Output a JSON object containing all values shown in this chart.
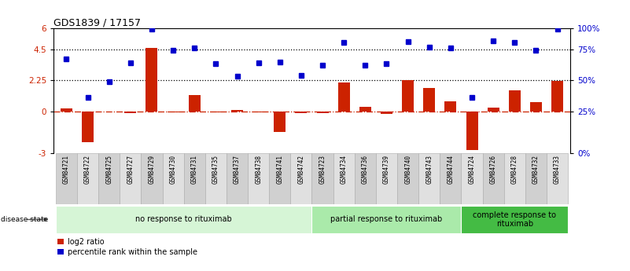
{
  "title": "GDS1839 / 17157",
  "samples": [
    "GSM84721",
    "GSM84722",
    "GSM84725",
    "GSM84727",
    "GSM84729",
    "GSM84730",
    "GSM84731",
    "GSM84735",
    "GSM84737",
    "GSM84738",
    "GSM84741",
    "GSM84742",
    "GSM84723",
    "GSM84734",
    "GSM84736",
    "GSM84739",
    "GSM84740",
    "GSM84743",
    "GSM84744",
    "GSM84724",
    "GSM84726",
    "GSM84728",
    "GSM84732",
    "GSM84733"
  ],
  "log2_ratio": [
    0.2,
    -2.2,
    0.0,
    -0.1,
    4.6,
    -0.08,
    1.2,
    -0.08,
    0.1,
    -0.08,
    -1.5,
    -0.1,
    -0.1,
    2.1,
    0.35,
    -0.18,
    2.25,
    1.7,
    0.75,
    -2.8,
    0.3,
    1.55,
    0.7,
    2.2
  ],
  "percentile": [
    3.82,
    1.0,
    2.15,
    3.5,
    5.97,
    4.42,
    4.57,
    3.47,
    2.57,
    3.5,
    3.57,
    2.62,
    3.37,
    5.02,
    3.37,
    3.47,
    5.07,
    4.67,
    4.57,
    1.0,
    5.12,
    5.02,
    4.42,
    5.97
  ],
  "groups": [
    {
      "label": "no response to rituximab",
      "start": 0,
      "end": 12,
      "color": "#d6f5d6"
    },
    {
      "label": "partial response to rituximab",
      "start": 12,
      "end": 19,
      "color": "#aaeaaa"
    },
    {
      "label": "complete response to\nrituximab",
      "start": 19,
      "end": 24,
      "color": "#44bb44"
    }
  ],
  "ylim_min": -3,
  "ylim_max": 6,
  "yticks_left": [
    -3,
    0,
    2.25,
    4.5,
    6
  ],
  "ytick_labels_left": [
    "-3",
    "0",
    "2.25",
    "4.5",
    "6"
  ],
  "ytick_labels_right": [
    "0%",
    "25%",
    "50%",
    "75%",
    "100%"
  ],
  "hlines_dotted": [
    2.25,
    4.5
  ],
  "bar_color": "#cc2200",
  "dot_color": "#0000cc",
  "zero_line_color": "#cc2200",
  "title_fontsize": 9,
  "tick_fontsize": 7.5,
  "sample_fontsize": 5.5,
  "legend_fontsize": 7,
  "group_fontsize": 7
}
